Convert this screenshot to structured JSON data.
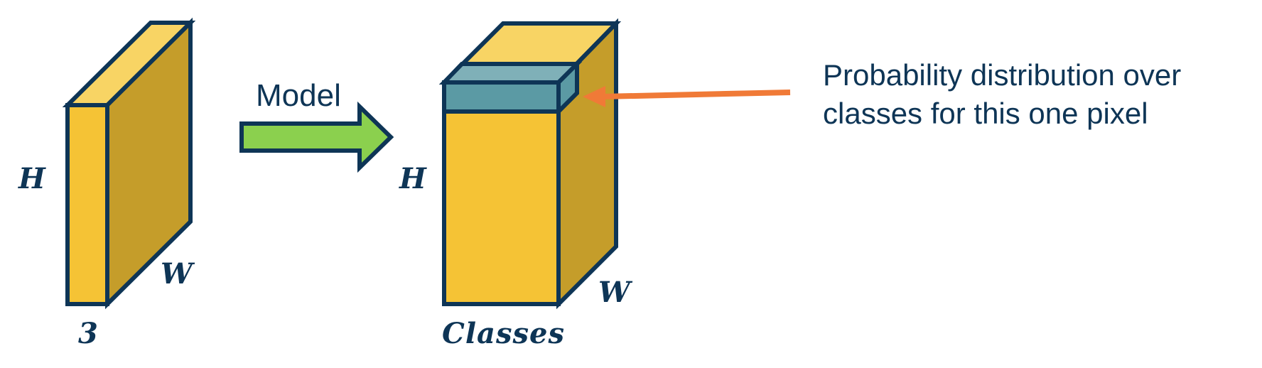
{
  "input_tensor": {
    "height_label": "H",
    "width_label": "W",
    "channels_label": "3"
  },
  "model_arrow": {
    "label": "Model"
  },
  "output_tensor": {
    "height_label": "H",
    "width_label": "W",
    "classes_label": "Classes"
  },
  "annotation": {
    "line1": "Probability distribution over",
    "line2": "classes for this one pixel"
  },
  "colors": {
    "outline": "#0e3556",
    "front_face": "#f5c335",
    "top_face": "#f8d464",
    "side_face": "#c59d2a",
    "pixel_front": "#5b9aa4",
    "pixel_top": "#7fb0b8",
    "model_arrow_fill": "#8bd04e",
    "pointer_arrow": "#f07a37"
  }
}
